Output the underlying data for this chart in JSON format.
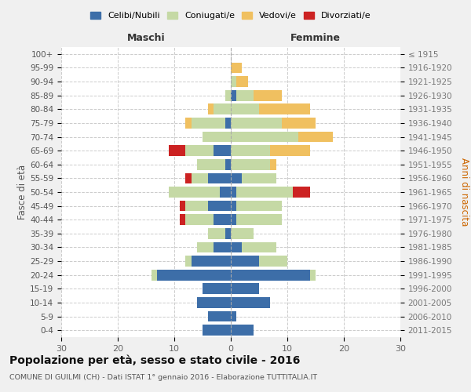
{
  "age_groups": [
    "0-4",
    "5-9",
    "10-14",
    "15-19",
    "20-24",
    "25-29",
    "30-34",
    "35-39",
    "40-44",
    "45-49",
    "50-54",
    "55-59",
    "60-64",
    "65-69",
    "70-74",
    "75-79",
    "80-84",
    "85-89",
    "90-94",
    "95-99",
    "100+"
  ],
  "birth_years": [
    "2011-2015",
    "2006-2010",
    "2001-2005",
    "1996-2000",
    "1991-1995",
    "1986-1990",
    "1981-1985",
    "1976-1980",
    "1971-1975",
    "1966-1970",
    "1961-1965",
    "1956-1960",
    "1951-1955",
    "1946-1950",
    "1941-1945",
    "1936-1940",
    "1931-1935",
    "1926-1930",
    "1921-1925",
    "1916-1920",
    "≤ 1915"
  ],
  "maschi": {
    "celibi": [
      5,
      4,
      6,
      5,
      13,
      7,
      3,
      1,
      3,
      4,
      2,
      4,
      1,
      3,
      0,
      1,
      0,
      0,
      0,
      0,
      0
    ],
    "coniugati": [
      0,
      0,
      0,
      0,
      1,
      1,
      3,
      3,
      5,
      4,
      9,
      3,
      5,
      5,
      5,
      6,
      3,
      1,
      0,
      0,
      0
    ],
    "vedovi": [
      0,
      0,
      0,
      0,
      0,
      0,
      0,
      0,
      0,
      0,
      0,
      0,
      0,
      0,
      0,
      1,
      1,
      0,
      0,
      0,
      0
    ],
    "divorziati": [
      0,
      0,
      0,
      0,
      0,
      0,
      0,
      0,
      1,
      1,
      0,
      1,
      0,
      3,
      0,
      0,
      0,
      0,
      0,
      0,
      0
    ]
  },
  "femmine": {
    "nubili": [
      4,
      1,
      7,
      5,
      14,
      5,
      2,
      0,
      1,
      1,
      1,
      2,
      0,
      0,
      0,
      0,
      0,
      1,
      0,
      0,
      0
    ],
    "coniugate": [
      0,
      0,
      0,
      0,
      1,
      5,
      6,
      4,
      8,
      8,
      10,
      6,
      7,
      7,
      12,
      9,
      5,
      3,
      1,
      0,
      0
    ],
    "vedove": [
      0,
      0,
      0,
      0,
      0,
      0,
      0,
      0,
      0,
      0,
      0,
      0,
      1,
      7,
      6,
      6,
      9,
      5,
      2,
      2,
      0
    ],
    "divorziate": [
      0,
      0,
      0,
      0,
      0,
      0,
      0,
      0,
      0,
      0,
      3,
      0,
      0,
      0,
      0,
      0,
      0,
      0,
      0,
      0,
      0
    ]
  },
  "colors": {
    "celibi": "#3d6ea8",
    "coniugati": "#c5d9a5",
    "vedovi": "#f0c060",
    "divorziati": "#cc2222"
  },
  "xlim": 30,
  "title": "Popolazione per età, sesso e stato civile - 2016",
  "subtitle": "COMUNE DI GUILMI (CH) - Dati ISTAT 1° gennaio 2016 - Elaborazione TUTTITALIA.IT",
  "ylabel_left": "Fasce di età",
  "ylabel_right": "Anni di nascita",
  "xlabel_left": "Maschi",
  "xlabel_right": "Femmine",
  "bg_color": "#f0f0f0",
  "plot_bg": "#ffffff"
}
